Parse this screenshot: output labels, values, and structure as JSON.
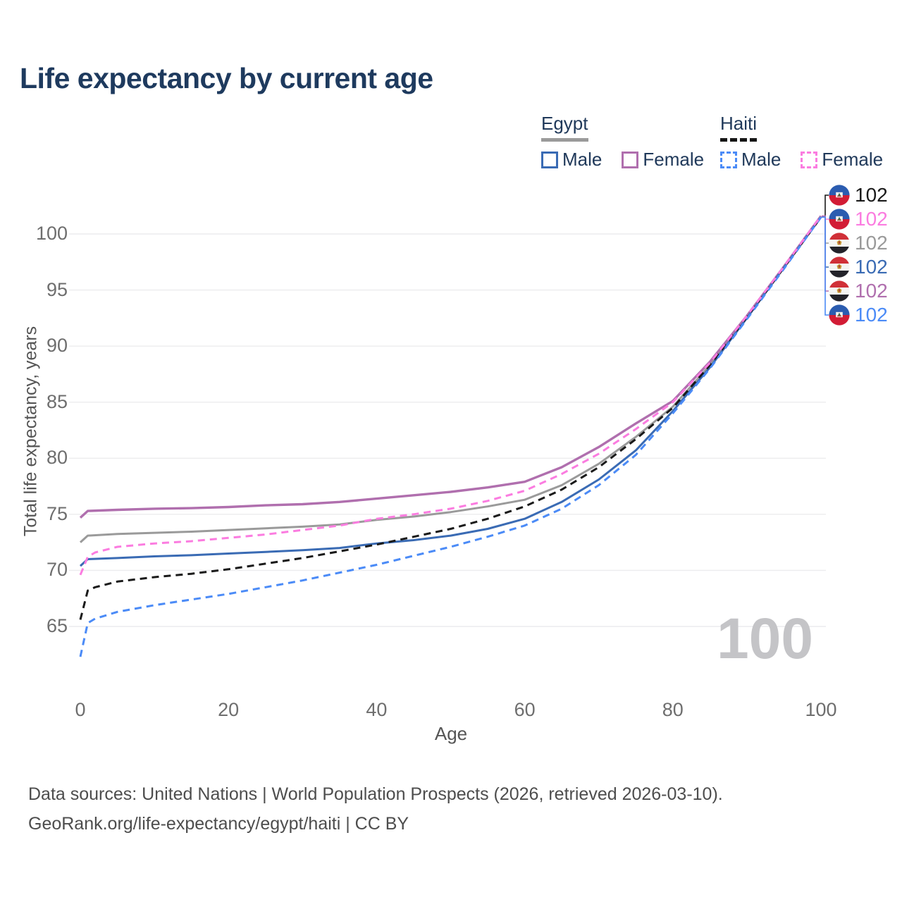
{
  "title": "Life expectancy by current age",
  "legend": {
    "groups": [
      {
        "title": "Egypt",
        "style": "solid",
        "items": [
          {
            "label": "Male"
          },
          {
            "label": "Female"
          }
        ]
      },
      {
        "title": "Haiti",
        "style": "dashed",
        "items": [
          {
            "label": "Male"
          },
          {
            "label": "Female"
          }
        ]
      }
    ]
  },
  "age_counter": "100",
  "axis": {
    "x_label": "Age",
    "y_label": "Total life expectancy, years"
  },
  "footer": {
    "line1": "Data sources: United Nations | World Population Prospects (2026, retrieved 2026-03-10).",
    "line2": "GeoRank.org/life-expectancy/egypt/haiti | CC BY"
  },
  "colors": {
    "egypt_male": "#3a6bb4",
    "egypt_female": "#b06fae",
    "egypt_both": "#9a9a9a",
    "haiti_male": "#4b8bf7",
    "haiti_female": "#fb7ce0",
    "haiti_both": "#1a1a1a",
    "title_text": "#1e3a5e",
    "axis_text": "#6e6e6e",
    "watermark": "#c4c4c7",
    "gridline": "#ececee"
  },
  "chart_data": {
    "type": "line",
    "title": "Life expectancy by current age",
    "xlabel": "Age",
    "ylabel": "Total life expectancy, years",
    "x_range": [
      0,
      100
    ],
    "y_range_shown": [
      62,
      103
    ],
    "xticks": [
      0,
      20,
      40,
      60,
      80,
      100
    ],
    "yticks": [
      65,
      70,
      75,
      80,
      85,
      90,
      95,
      100
    ],
    "grid": "horizontal",
    "legend_position": "top-right",
    "series": [
      {
        "id": "egypt_both",
        "name": "Egypt Both sexes",
        "country": "Egypt",
        "sex": "both",
        "flag": "egypt",
        "color": "#9a9a9a",
        "dashed": false,
        "end_label": "102",
        "label_row": 2,
        "points": [
          [
            0,
            72.5
          ],
          [
            1,
            73.1
          ],
          [
            5,
            73.25
          ],
          [
            10,
            73.35
          ],
          [
            15,
            73.45
          ],
          [
            20,
            73.6
          ],
          [
            25,
            73.75
          ],
          [
            30,
            73.9
          ],
          [
            35,
            74.1
          ],
          [
            40,
            74.5
          ],
          [
            45,
            74.8
          ],
          [
            50,
            75.2
          ],
          [
            55,
            75.7
          ],
          [
            60,
            76.3
          ],
          [
            65,
            77.6
          ],
          [
            70,
            79.5
          ],
          [
            75,
            81.9
          ],
          [
            80,
            84.6
          ],
          [
            85,
            88.3
          ],
          [
            90,
            92.6
          ],
          [
            95,
            97.0
          ],
          [
            100,
            101.5
          ]
        ]
      },
      {
        "id": "egypt_female",
        "name": "Egypt Female",
        "country": "Egypt",
        "sex": "female",
        "flag": "egypt",
        "color": "#b06fae",
        "dashed": false,
        "end_label": "102",
        "label_row": 4,
        "points": [
          [
            0,
            74.7
          ],
          [
            1,
            75.3
          ],
          [
            5,
            75.4
          ],
          [
            10,
            75.5
          ],
          [
            15,
            75.55
          ],
          [
            20,
            75.65
          ],
          [
            25,
            75.8
          ],
          [
            30,
            75.9
          ],
          [
            35,
            76.1
          ],
          [
            40,
            76.4
          ],
          [
            45,
            76.7
          ],
          [
            50,
            77.0
          ],
          [
            55,
            77.4
          ],
          [
            60,
            77.9
          ],
          [
            65,
            79.2
          ],
          [
            70,
            81.0
          ],
          [
            75,
            83.1
          ],
          [
            80,
            85.1
          ],
          [
            85,
            88.6
          ],
          [
            90,
            92.7
          ],
          [
            95,
            97.1
          ],
          [
            100,
            101.6
          ]
        ]
      },
      {
        "id": "egypt_male",
        "name": "Egypt Male",
        "country": "Egypt",
        "sex": "male",
        "flag": "egypt",
        "color": "#3a6bb4",
        "dashed": false,
        "end_label": "102",
        "label_row": 3,
        "points": [
          [
            0,
            70.4
          ],
          [
            1,
            71.0
          ],
          [
            5,
            71.1
          ],
          [
            10,
            71.25
          ],
          [
            15,
            71.35
          ],
          [
            20,
            71.5
          ],
          [
            25,
            71.65
          ],
          [
            30,
            71.8
          ],
          [
            35,
            72.0
          ],
          [
            40,
            72.4
          ],
          [
            45,
            72.7
          ],
          [
            50,
            73.1
          ],
          [
            55,
            73.7
          ],
          [
            60,
            74.6
          ],
          [
            65,
            76.1
          ],
          [
            70,
            78.1
          ],
          [
            75,
            80.7
          ],
          [
            80,
            84.2
          ],
          [
            85,
            88.1
          ],
          [
            90,
            92.5
          ],
          [
            95,
            97.0
          ],
          [
            100,
            101.5
          ]
        ]
      },
      {
        "id": "haiti_both",
        "name": "Haiti Both sexes",
        "country": "Haiti",
        "sex": "both",
        "flag": "haiti",
        "color": "#1a1a1a",
        "dashed": true,
        "end_label": "102",
        "label_row": 0,
        "points": [
          [
            0,
            65.6
          ],
          [
            1,
            68.2
          ],
          [
            2,
            68.5
          ],
          [
            5,
            69.0
          ],
          [
            10,
            69.4
          ],
          [
            15,
            69.7
          ],
          [
            20,
            70.1
          ],
          [
            25,
            70.6
          ],
          [
            30,
            71.1
          ],
          [
            35,
            71.7
          ],
          [
            40,
            72.3
          ],
          [
            45,
            73.0
          ],
          [
            50,
            73.7
          ],
          [
            55,
            74.6
          ],
          [
            60,
            75.7
          ],
          [
            65,
            77.2
          ],
          [
            70,
            79.2
          ],
          [
            75,
            81.7
          ],
          [
            80,
            84.5
          ],
          [
            85,
            88.3
          ],
          [
            90,
            92.6
          ],
          [
            95,
            97.0
          ],
          [
            100,
            101.5
          ]
        ]
      },
      {
        "id": "haiti_male",
        "name": "Haiti Male",
        "country": "Haiti",
        "sex": "male",
        "flag": "haiti",
        "color": "#4b8bf7",
        "dashed": true,
        "end_label": "102",
        "label_row": 5,
        "points": [
          [
            0,
            62.3
          ],
          [
            1,
            65.3
          ],
          [
            2,
            65.7
          ],
          [
            5,
            66.3
          ],
          [
            10,
            66.9
          ],
          [
            15,
            67.4
          ],
          [
            20,
            67.9
          ],
          [
            25,
            68.5
          ],
          [
            30,
            69.1
          ],
          [
            35,
            69.8
          ],
          [
            40,
            70.5
          ],
          [
            45,
            71.3
          ],
          [
            50,
            72.1
          ],
          [
            55,
            73.0
          ],
          [
            60,
            74.0
          ],
          [
            65,
            75.5
          ],
          [
            70,
            77.6
          ],
          [
            75,
            80.3
          ],
          [
            80,
            84.0
          ],
          [
            85,
            88.0
          ],
          [
            90,
            92.4
          ],
          [
            95,
            96.9
          ],
          [
            100,
            101.5
          ]
        ]
      },
      {
        "id": "haiti_female",
        "name": "Haiti Female",
        "country": "Haiti",
        "sex": "female",
        "flag": "haiti",
        "color": "#fb7ce0",
        "dashed": true,
        "end_label": "102",
        "label_row": 1,
        "points": [
          [
            0,
            69.6
          ],
          [
            1,
            71.2
          ],
          [
            2,
            71.6
          ],
          [
            5,
            72.1
          ],
          [
            10,
            72.4
          ],
          [
            15,
            72.6
          ],
          [
            20,
            72.9
          ],
          [
            25,
            73.2
          ],
          [
            30,
            73.6
          ],
          [
            35,
            74.0
          ],
          [
            40,
            74.6
          ],
          [
            45,
            75.0
          ],
          [
            50,
            75.5
          ],
          [
            55,
            76.2
          ],
          [
            60,
            77.1
          ],
          [
            65,
            78.6
          ],
          [
            70,
            80.4
          ],
          [
            75,
            82.6
          ],
          [
            80,
            85.0
          ],
          [
            85,
            88.5
          ],
          [
            90,
            92.7
          ],
          [
            95,
            97.1
          ],
          [
            100,
            101.6
          ]
        ]
      }
    ]
  }
}
